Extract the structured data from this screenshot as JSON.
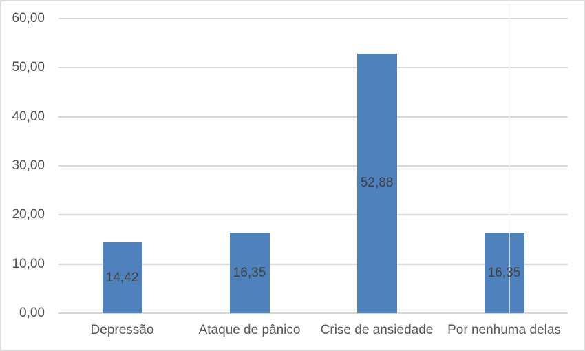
{
  "chart_data": {
    "type": "bar",
    "categories": [
      "Depressão",
      "Ataque de pânico",
      "Crise de ansiedade",
      "Por nenhuma delas"
    ],
    "values": [
      14.42,
      16.35,
      52.88,
      16.35
    ],
    "value_labels": [
      "14,42",
      "16,35",
      "52,88",
      "16,35"
    ],
    "title": "",
    "xlabel": "",
    "ylabel": "",
    "ylim": [
      0,
      60
    ],
    "ytick_step": 10,
    "ytick_labels": [
      "0,00",
      "10,00",
      "20,00",
      "30,00",
      "40,00",
      "50,00",
      "60,00"
    ],
    "grid": true,
    "legend": false,
    "label_position": "inside-center",
    "decimal_separator": ","
  },
  "colors": {
    "bar": "#4f81bd",
    "gridline": "#d9d9d9",
    "axis_line": "#d6d6d6",
    "tick_text": "#4d4d4d",
    "category_text": "#565656",
    "data_label_text": "#404040",
    "frame_border": "#dedede"
  }
}
